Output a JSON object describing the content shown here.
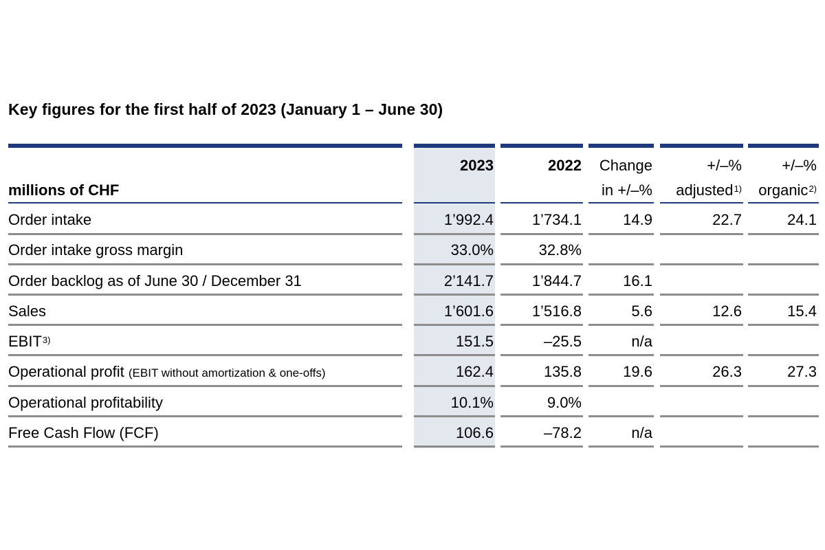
{
  "title": "Key figures for the first half of 2023 (January 1 – June 30)",
  "header": {
    "unit_label": "millions of CHF",
    "col_2023": "2023",
    "col_2022": "2022",
    "col_change_line1": "Change",
    "col_change_line2": "in +/–%",
    "col_adjusted_line1": "+/–%",
    "col_adjusted_line2": "adjusted",
    "col_adjusted_footnote": "1)",
    "col_organic_line1": "+/–%",
    "col_organic_line2": "organic",
    "col_organic_footnote": "2)"
  },
  "rows": [
    {
      "label": "Order intake",
      "v2023": "1’992.4",
      "v2022": "1’734.1",
      "change": "14.9",
      "adjusted": "22.7",
      "organic": "24.1"
    },
    {
      "label": "Order intake gross margin",
      "v2023": "33.0%",
      "v2022": "32.8%",
      "change": "",
      "adjusted": "",
      "organic": ""
    },
    {
      "label": "Order backlog as of June 30 / December 31",
      "v2023": "2’141.7",
      "v2022": "1’844.7",
      "change": "16.1",
      "adjusted": "",
      "organic": ""
    },
    {
      "label": "Sales",
      "v2023": "1’601.6",
      "v2022": "1’516.8",
      "change": "5.6",
      "adjusted": "12.6",
      "organic": "15.4"
    },
    {
      "label": "EBIT",
      "label_footnote": "3)",
      "v2023": "151.5",
      "v2022": "–25.5",
      "change": "n/a",
      "adjusted": "",
      "organic": ""
    },
    {
      "label": "Operational profit",
      "label_note": "(EBIT without amortization & one-offs)",
      "v2023": "162.4",
      "v2022": "135.8",
      "change": "19.6",
      "adjusted": "26.3",
      "organic": "27.3"
    },
    {
      "label": "Operational profitability",
      "v2023": "10.1%",
      "v2022": "9.0%",
      "change": "",
      "adjusted": "",
      "organic": ""
    },
    {
      "label": "Free Cash Flow (FCF)",
      "v2023": "106.6",
      "v2022": "–78.2",
      "change": "n/a",
      "adjusted": "",
      "organic": ""
    }
  ],
  "colors": {
    "rule_blue": "#1f3a7c",
    "rule_grey": "#8d8d8d",
    "highlight_column": "#e3e7ee"
  }
}
